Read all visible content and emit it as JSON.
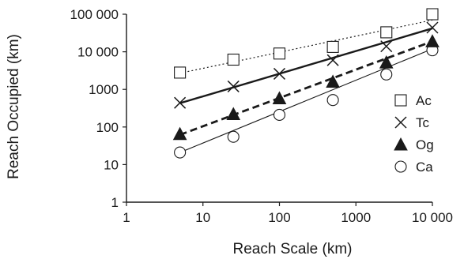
{
  "chart_data": {
    "type": "scatter",
    "xlabel": "Reach Scale (km)",
    "ylabel": "Reach Occupied (km)",
    "x_scale": "log",
    "y_scale": "log",
    "xlim": [
      1,
      10000
    ],
    "ylim": [
      1,
      100000
    ],
    "x_ticks": [
      {
        "value": 1,
        "label": "1"
      },
      {
        "value": 10,
        "label": "10"
      },
      {
        "value": 100,
        "label": "100"
      },
      {
        "value": 1000,
        "label": "1000"
      },
      {
        "value": 10000,
        "label": "10 000"
      }
    ],
    "y_ticks": [
      {
        "value": 1,
        "label": "1"
      },
      {
        "value": 10,
        "label": "10"
      },
      {
        "value": 100,
        "label": "100"
      },
      {
        "value": 1000,
        "label": "1000"
      },
      {
        "value": 10000,
        "label": "10 000"
      },
      {
        "value": 100000,
        "label": "100 000"
      }
    ],
    "grid": false,
    "legend_position": "right",
    "series": [
      {
        "name": "Ac",
        "marker": "open-square",
        "line_style": "dotted",
        "x": [
          5,
          25,
          100,
          500,
          2500,
          10000
        ],
        "y": [
          2800,
          6200,
          9000,
          13500,
          33000,
          100000
        ],
        "fit": {
          "x": [
            5,
            10000
          ],
          "y": [
            2700,
            70000
          ]
        }
      },
      {
        "name": "Tc",
        "marker": "cross",
        "line_style": "solid-thick",
        "x": [
          5,
          25,
          100,
          500,
          2500,
          10000
        ],
        "y": [
          440,
          1200,
          2600,
          6000,
          14000,
          44000
        ],
        "fit": {
          "x": [
            5,
            10000
          ],
          "y": [
            430,
            42000
          ]
        }
      },
      {
        "name": "Og",
        "marker": "filled-triangle",
        "line_style": "dashed-thick",
        "x": [
          5,
          25,
          100,
          500,
          2500,
          10000
        ],
        "y": [
          65,
          220,
          580,
          1600,
          5200,
          19000
        ],
        "fit": {
          "x": [
            5,
            10000
          ],
          "y": [
            62,
            19000
          ]
        }
      },
      {
        "name": "Ca",
        "marker": "open-circle",
        "line_style": "solid-thin",
        "x": [
          5,
          25,
          100,
          500,
          2500,
          10000
        ],
        "y": [
          21,
          55,
          210,
          520,
          2500,
          11000
        ],
        "fit": {
          "x": [
            5,
            10000
          ],
          "y": [
            21,
            12000
          ]
        }
      }
    ]
  },
  "colors": {
    "ink": "#1a1a1a",
    "background": "#ffffff"
  }
}
